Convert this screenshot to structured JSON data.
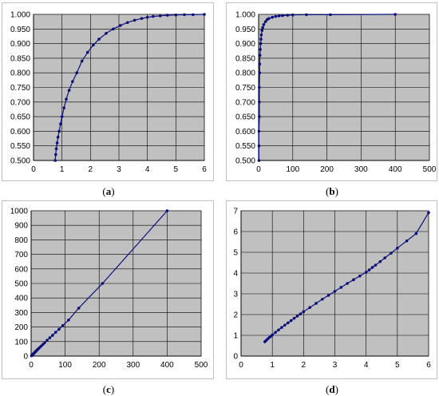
{
  "chart_data": [
    {
      "id": "a",
      "type": "scatter",
      "line": true,
      "caption": "a",
      "title": "",
      "xlabel": "",
      "ylabel": "",
      "xlim": [
        0,
        6
      ],
      "ylim": [
        0.5,
        1.0
      ],
      "xticks": [
        0,
        1,
        2,
        3,
        4,
        5,
        6
      ],
      "xtick_labels": [
        "0",
        "1",
        "2",
        "3",
        "4",
        "5",
        "6"
      ],
      "yticks": [
        0.5,
        0.55,
        0.6,
        0.65,
        0.7,
        0.75,
        0.8,
        0.85,
        0.9,
        0.95,
        1.0
      ],
      "ytick_labels": [
        "0.500",
        "0.550",
        "0.600",
        "0.650",
        "0.700",
        "0.750",
        "0.800",
        "0.850",
        "0.900",
        "0.950",
        "1.000"
      ],
      "grid": true,
      "series": [
        {
          "color": "#0a0f7a",
          "x": [
            0.76,
            0.78,
            0.8,
            0.83,
            0.86,
            0.9,
            0.95,
            1.0,
            1.07,
            1.15,
            1.25,
            1.37,
            1.52,
            1.7,
            1.9,
            2.1,
            2.3,
            2.55,
            2.8,
            3.05,
            3.3,
            3.55,
            3.8,
            4.0,
            4.2,
            4.45,
            4.7,
            5.0,
            5.3,
            5.6,
            6.0
          ],
          "y": [
            0.5,
            0.52,
            0.54,
            0.56,
            0.58,
            0.6,
            0.625,
            0.65,
            0.68,
            0.71,
            0.74,
            0.77,
            0.8,
            0.84,
            0.87,
            0.895,
            0.915,
            0.935,
            0.95,
            0.962,
            0.972,
            0.98,
            0.986,
            0.99,
            0.993,
            0.995,
            0.997,
            0.998,
            0.999,
            0.999,
            1.0
          ]
        }
      ]
    },
    {
      "id": "b",
      "type": "scatter",
      "line": true,
      "caption": "b",
      "title": "",
      "xlabel": "",
      "ylabel": "",
      "xlim": [
        0,
        500
      ],
      "ylim": [
        0.5,
        1.0
      ],
      "xticks": [
        0,
        100,
        200,
        300,
        400,
        500
      ],
      "xtick_labels": [
        "0",
        "100",
        "200",
        "300",
        "400",
        "500"
      ],
      "yticks": [
        0.5,
        0.55,
        0.6,
        0.65,
        0.7,
        0.75,
        0.8,
        0.85,
        0.9,
        0.95,
        1.0
      ],
      "ytick_labels": [
        "0.500",
        "0.550",
        "0.600",
        "0.650",
        "0.700",
        "0.750",
        "0.800",
        "0.850",
        "0.900",
        "0.950",
        "1.000"
      ],
      "grid": true,
      "series": [
        {
          "color": "#0a0f7a",
          "x": [
            1,
            1,
            1,
            2,
            2,
            2,
            3,
            3,
            4,
            5,
            6,
            7,
            8,
            10,
            12,
            15,
            20,
            25,
            30,
            40,
            50,
            60,
            70,
            85,
            100,
            140,
            210,
            400
          ],
          "y": [
            0.5,
            0.55,
            0.6,
            0.65,
            0.7,
            0.75,
            0.8,
            0.83,
            0.86,
            0.88,
            0.9,
            0.915,
            0.93,
            0.945,
            0.955,
            0.965,
            0.975,
            0.982,
            0.986,
            0.99,
            0.993,
            0.995,
            0.996,
            0.997,
            0.998,
            0.999,
            0.999,
            1.0
          ]
        }
      ]
    },
    {
      "id": "c",
      "type": "scatter",
      "line": true,
      "caption": "c",
      "title": "",
      "xlabel": "",
      "ylabel": "",
      "xlim": [
        0,
        500
      ],
      "ylim": [
        0,
        1000
      ],
      "xticks": [
        0,
        100,
        200,
        300,
        400,
        500
      ],
      "xtick_labels": [
        "0",
        "100",
        "200",
        "300",
        "400",
        "500"
      ],
      "yticks": [
        0,
        100,
        200,
        300,
        400,
        500,
        600,
        700,
        800,
        900,
        1000
      ],
      "ytick_labels": [
        "0",
        "100",
        "200",
        "300",
        "400",
        "500",
        "600",
        "700",
        "800",
        "900",
        "1000"
      ],
      "grid": true,
      "series": [
        {
          "color": "#0a0f7a",
          "x": [
            1,
            2,
            3,
            4,
            5,
            7,
            9,
            11,
            13,
            16,
            19,
            22,
            26,
            30,
            35,
            40,
            47,
            55,
            63,
            72,
            82,
            93,
            110,
            140,
            210,
            400
          ],
          "y": [
            2,
            4,
            6,
            9,
            12,
            16,
            21,
            26,
            31,
            38,
            45,
            52,
            61,
            70,
            81,
            93,
            109,
            126,
            143,
            163,
            185,
            210,
            248,
            330,
            500,
            1000
          ]
        }
      ]
    },
    {
      "id": "d",
      "type": "scatter",
      "line": true,
      "caption": "d",
      "title": "",
      "xlabel": "",
      "ylabel": "",
      "xlim": [
        0,
        6
      ],
      "ylim": [
        0,
        7
      ],
      "xticks": [
        0,
        1,
        2,
        3,
        4,
        5,
        6
      ],
      "xtick_labels": [
        "0",
        "1",
        "2",
        "3",
        "4",
        "5",
        "6"
      ],
      "yticks": [
        0,
        1,
        2,
        3,
        4,
        5,
        6,
        7
      ],
      "ytick_labels": [
        "0",
        "1",
        "2",
        "3",
        "4",
        "5",
        "6",
        "7"
      ],
      "grid": true,
      "series": [
        {
          "color": "#0a0f7a",
          "x": [
            0.76,
            0.8,
            0.85,
            0.9,
            0.95,
            1.0,
            1.1,
            1.2,
            1.3,
            1.4,
            1.5,
            1.6,
            1.7,
            1.8,
            1.9,
            2.0,
            2.2,
            2.4,
            2.6,
            2.8,
            3.0,
            3.2,
            3.4,
            3.6,
            3.8,
            4.0,
            4.1,
            4.2,
            4.3,
            4.45,
            4.6,
            4.8,
            5.0,
            5.3,
            5.6,
            6.0
          ],
          "y": [
            0.69,
            0.75,
            0.82,
            0.89,
            0.95,
            1.02,
            1.14,
            1.26,
            1.38,
            1.49,
            1.6,
            1.71,
            1.82,
            1.93,
            2.03,
            2.14,
            2.34,
            2.54,
            2.74,
            2.93,
            3.12,
            3.31,
            3.5,
            3.68,
            3.86,
            4.04,
            4.15,
            4.27,
            4.38,
            4.55,
            4.73,
            4.96,
            5.2,
            5.55,
            5.9,
            6.91
          ]
        }
      ]
    }
  ]
}
